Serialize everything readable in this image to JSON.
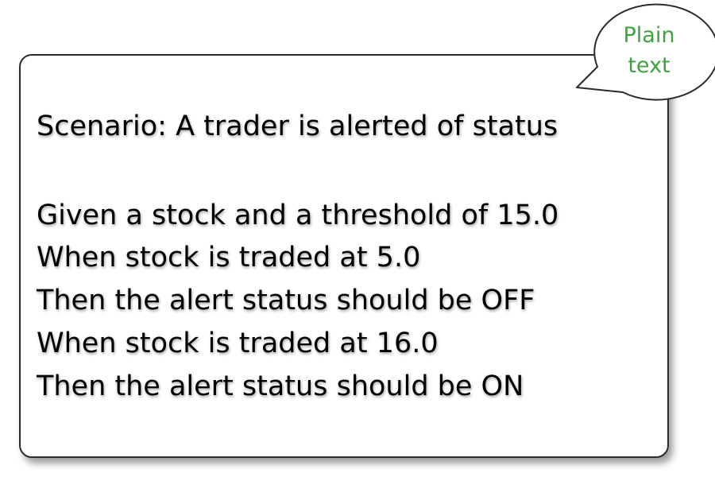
{
  "callout": {
    "lines": [
      "Plain",
      "text"
    ],
    "text_color": "#3fa43f"
  },
  "scenario": {
    "title": "Scenario:  A trader is alerted of status",
    "steps": [
      "Given a stock and a threshold of 15.0",
      "When stock is traded at 5.0",
      "Then the alert status should be OFF",
      "When stock is traded at 16.0",
      "Then the alert status should be ON"
    ]
  }
}
